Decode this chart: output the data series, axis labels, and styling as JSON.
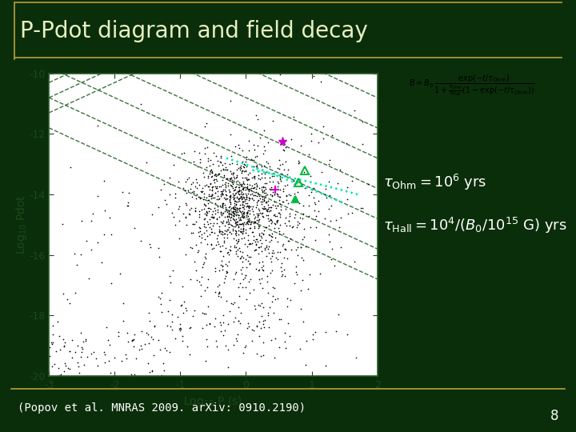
{
  "title": "P-Pdot diagram and field decay",
  "title_color": "#e8f0c0",
  "bg_color": "#0a2e0a",
  "border_color": "#b8a040",
  "plot_bg": "#ffffff",
  "plot_border_color": "#2a5a2a",
  "xlabel": "Log$_{10}$ P (s)",
  "ylabel": "Log$_{10}$ Pdot",
  "xlim": [
    -3,
    2
  ],
  "ylim": [
    -20,
    -10
  ],
  "xticks": [
    -3,
    -2,
    -1,
    0,
    1,
    2
  ],
  "yticks": [
    -20,
    -18,
    -16,
    -14,
    -12,
    -10
  ],
  "xtick_labels": [
    "-3",
    "-2",
    "-1",
    "0",
    "1",
    "2"
  ],
  "ytick_labels": [
    "-20",
    "-18",
    "-16",
    "-14",
    "-12",
    "-10"
  ],
  "formula_box_color": "#fffff0",
  "text_color": "#ffffff",
  "citation": "(Popov et al. MNRAS 2009. arXiv: 0910.2190)",
  "citation_color": "#ffffff",
  "page_number": "8",
  "scatter_color": "#000000",
  "magenta_point1": [
    0.55,
    -12.25
  ],
  "magenta_point2": [
    0.45,
    -13.85
  ],
  "green_tri1": [
    0.9,
    -13.2
  ],
  "green_tri2": [
    0.8,
    -13.6
  ],
  "green_tri3": [
    0.75,
    -14.15
  ],
  "dotted_curve_color": "#00e8b0",
  "dashed_lines_color": "#1a5a1a"
}
